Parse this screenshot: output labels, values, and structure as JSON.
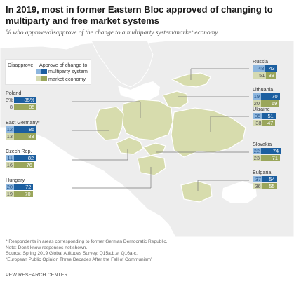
{
  "title": "In 2019, most in former Eastern Bloc approved of changing to multiparty and free market systems",
  "subtitle": "% who approve/disapprove of the change to a multiparty system/market economy",
  "legend": {
    "disapprove_label": "Disapprove",
    "approve_label": "Approve of change to",
    "multiparty_label": "multiparty system",
    "market_label": "market economy"
  },
  "colors": {
    "multiparty_approve": "#1c5fa0",
    "multiparty_disapprove": "#8db6de",
    "market_approve": "#9aa65b",
    "market_disapprove": "#d5dab2",
    "highlight_country": "#d7dcad",
    "other_land": "#ededed",
    "border": "#ffffff",
    "water": "#ffffff"
  },
  "chart_data": {
    "type": "bar",
    "title": "In 2019, most in former Eastern Bloc approved of changing to multiparty and free market systems",
    "subtitle": "% who approve/disapprove of the change to a multiparty system/market economy",
    "series_labels": [
      "Disapprove",
      "Approve of change to multiparty system",
      "Approve of change to market economy"
    ],
    "countries": [
      {
        "name": "Poland",
        "multiparty": {
          "disapprove": 8,
          "disapprove_label": "8%",
          "approve": 85,
          "approve_label": "85%"
        },
        "market": {
          "disapprove": 8,
          "disapprove_label": "8",
          "approve": 85,
          "approve_label": "85"
        }
      },
      {
        "name": "East Germany*",
        "multiparty": {
          "disapprove": 12,
          "disapprove_label": "12",
          "approve": 85,
          "approve_label": "85"
        },
        "market": {
          "disapprove": 13,
          "disapprove_label": "13",
          "approve": 83,
          "approve_label": "83"
        }
      },
      {
        "name": "Czech Rep.",
        "multiparty": {
          "disapprove": 11,
          "disapprove_label": "11",
          "approve": 82,
          "approve_label": "82"
        },
        "market": {
          "disapprove": 16,
          "disapprove_label": "16",
          "approve": 76,
          "approve_label": "76"
        }
      },
      {
        "name": "Hungary",
        "multiparty": {
          "disapprove": 20,
          "disapprove_label": "20",
          "approve": 72,
          "approve_label": "72"
        },
        "market": {
          "disapprove": 19,
          "disapprove_label": "19",
          "approve": 70,
          "approve_label": "70"
        }
      },
      {
        "name": "Russia",
        "multiparty": {
          "disapprove": 48,
          "disapprove_label": "48",
          "approve": 43,
          "approve_label": "43"
        },
        "market": {
          "disapprove": 51,
          "disapprove_label": "51",
          "approve": 38,
          "approve_label": "38"
        }
      },
      {
        "name": "Lithuania",
        "multiparty": {
          "disapprove": 19,
          "disapprove_label": "19",
          "approve": 70,
          "approve_label": "70"
        },
        "market": {
          "disapprove": 20,
          "disapprove_label": "20",
          "approve": 69,
          "approve_label": "69"
        }
      },
      {
        "name": "Ukraine",
        "multiparty": {
          "disapprove": 35,
          "disapprove_label": "35",
          "approve": 51,
          "approve_label": "51"
        },
        "market": {
          "disapprove": 38,
          "disapprove_label": "38",
          "approve": 47,
          "approve_label": "47"
        }
      },
      {
        "name": "Slovakia",
        "multiparty": {
          "disapprove": 22,
          "disapprove_label": "22",
          "approve": 74,
          "approve_label": "74"
        },
        "market": {
          "disapprove": 23,
          "disapprove_label": "23",
          "approve": 71,
          "approve_label": "71"
        }
      },
      {
        "name": "Bulgaria",
        "multiparty": {
          "disapprove": 37,
          "disapprove_label": "37",
          "approve": 54,
          "approve_label": "54"
        },
        "market": {
          "disapprove": 36,
          "disapprove_label": "36",
          "approve": 55,
          "approve_label": "55"
        }
      }
    ]
  },
  "notes": {
    "asterisk": "* Respondents in areas corresponding to former German Democratic Republic.",
    "note": "Note: Don’t know responses not shown.",
    "source": "Source: Spring 2019 Global Attitudes Survey. Q15a,b,e, Q16a-c.",
    "report": "“European Public Opinion Three Decades After the Fall of Communism”"
  },
  "brand": "PEW RESEARCH CENTER"
}
